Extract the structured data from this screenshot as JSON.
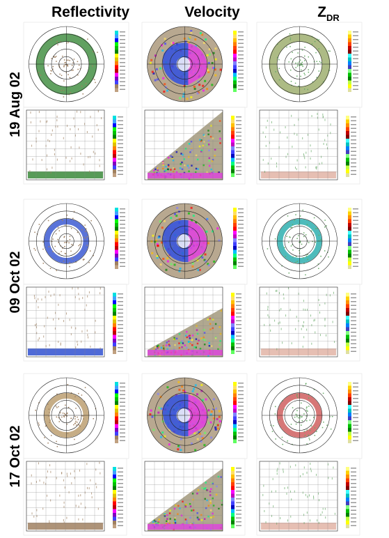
{
  "columns": [
    {
      "title": "Reflectivity"
    },
    {
      "title": "Velocity"
    },
    {
      "symbol": "Z",
      "subscript": "DR"
    }
  ],
  "rows": [
    {
      "date": "19 Aug 02"
    },
    {
      "date": "09 Oct 02"
    },
    {
      "date": "17 Oct 02"
    }
  ]
}
